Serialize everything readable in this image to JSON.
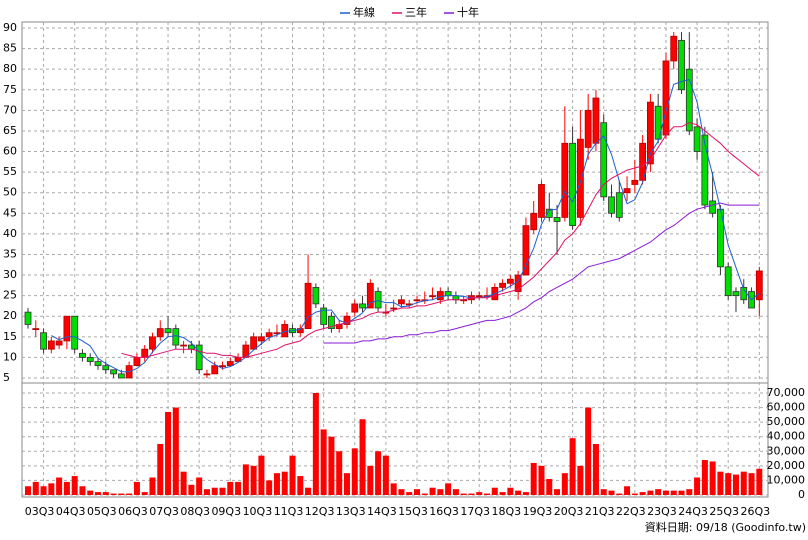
{
  "chart_data": [
    {
      "type": "candlestick",
      "up_color": "#ff0000",
      "down_color": "#00dd00",
      "grid": true,
      "categories": [
        null,
        null,
        "03Q3",
        null,
        null,
        null,
        "04Q3",
        null,
        null,
        null,
        "05Q3",
        null,
        null,
        null,
        "06Q3",
        null,
        null,
        null,
        "07Q3",
        null,
        null,
        null,
        "08Q3",
        null,
        null,
        null,
        "09Q3",
        null,
        null,
        null,
        "10Q3",
        null,
        null,
        null,
        "11Q3",
        null,
        null,
        null,
        "12Q3",
        null,
        null,
        null,
        "13Q3",
        null,
        null,
        null,
        "14Q3",
        null,
        null,
        null,
        "15Q3",
        null,
        null,
        null,
        "16Q3",
        null,
        null,
        null,
        "17Q3",
        null,
        null,
        null,
        "18Q3",
        null,
        null,
        null,
        "19Q3",
        null,
        null,
        null,
        "20Q3",
        null,
        null,
        null,
        "21Q3",
        null,
        null,
        null,
        "22Q3",
        null,
        null,
        null,
        "23Q3",
        null,
        null,
        null,
        "24Q3",
        null,
        null,
        null,
        "25Q3",
        null,
        null,
        null,
        "26Q3"
      ],
      "ohlc": [
        [
          21,
          22,
          17,
          18
        ],
        [
          17,
          19,
          15,
          17
        ],
        [
          16,
          17,
          11,
          12
        ],
        [
          12,
          15,
          11,
          14
        ],
        [
          13,
          15,
          12,
          14
        ],
        [
          14,
          20,
          12,
          20
        ],
        [
          20,
          20,
          11,
          12
        ],
        [
          11,
          12,
          9,
          10
        ],
        [
          10,
          11,
          8,
          9
        ],
        [
          9,
          10,
          7,
          8
        ],
        [
          8,
          9,
          6,
          7
        ],
        [
          7,
          7,
          5,
          6
        ],
        [
          6,
          7,
          5,
          5
        ],
        [
          5,
          9,
          5,
          8
        ],
        [
          8,
          11,
          8,
          10
        ],
        [
          10,
          13,
          9,
          12
        ],
        [
          12,
          16,
          11,
          15
        ],
        [
          15,
          19,
          14,
          17
        ],
        [
          17,
          20,
          15,
          16
        ],
        [
          17,
          18,
          12,
          13
        ],
        [
          13,
          14,
          11,
          13
        ],
        [
          13,
          14,
          11,
          12
        ],
        [
          13,
          14,
          6,
          7
        ],
        [
          6,
          7,
          5,
          6
        ],
        [
          6,
          9,
          6,
          8
        ],
        [
          8,
          9,
          7,
          8
        ],
        [
          8,
          10,
          8,
          9
        ],
        [
          9,
          11,
          9,
          10
        ],
        [
          10,
          14,
          10,
          13
        ],
        [
          12,
          16,
          12,
          15
        ],
        [
          14,
          16,
          13,
          15
        ],
        [
          15,
          17,
          14,
          16
        ],
        [
          16,
          18,
          15,
          16
        ],
        [
          15,
          19,
          15,
          18
        ],
        [
          17,
          18,
          15,
          16
        ],
        [
          16,
          18,
          15,
          17
        ],
        [
          17,
          35,
          17,
          28
        ],
        [
          27,
          28,
          22,
          23
        ],
        [
          22,
          23,
          17,
          18
        ],
        [
          20,
          21,
          16,
          17
        ],
        [
          17,
          19,
          16,
          18
        ],
        [
          18,
          21,
          17,
          20
        ],
        [
          21,
          24,
          20,
          23
        ],
        [
          23,
          25,
          21,
          22
        ],
        [
          22,
          29,
          22,
          28
        ],
        [
          26,
          27,
          21,
          22
        ],
        [
          21,
          23,
          20,
          21
        ],
        [
          22,
          24,
          21,
          22
        ],
        [
          23,
          25,
          22,
          24
        ],
        [
          23,
          24,
          22,
          23
        ],
        [
          24,
          25,
          23,
          24
        ],
        [
          24,
          26,
          23,
          24
        ],
        [
          25,
          27,
          24,
          25
        ],
        [
          24,
          27,
          23,
          26
        ],
        [
          26,
          27,
          24,
          25
        ],
        [
          25,
          26,
          23,
          24
        ],
        [
          24,
          25,
          23,
          24
        ],
        [
          24,
          26,
          23,
          25
        ],
        [
          25,
          26,
          24,
          25
        ],
        [
          25,
          27,
          24,
          25
        ],
        [
          24,
          28,
          24,
          27
        ],
        [
          27,
          29,
          26,
          28
        ],
        [
          28,
          30,
          27,
          29
        ],
        [
          26,
          31,
          24,
          30
        ],
        [
          30,
          44,
          30,
          42
        ],
        [
          41,
          48,
          40,
          45
        ],
        [
          44,
          53,
          43,
          52
        ],
        [
          46,
          50,
          43,
          44
        ],
        [
          44,
          47,
          35,
          43
        ],
        [
          44,
          71,
          43,
          62
        ],
        [
          62,
          66,
          41,
          42
        ],
        [
          44,
          70,
          42,
          63
        ],
        [
          61,
          74,
          58,
          70
        ],
        [
          62,
          75,
          60,
          73
        ],
        [
          67,
          69,
          48,
          49
        ],
        [
          49,
          52,
          44,
          45
        ],
        [
          50,
          53,
          43,
          44
        ],
        [
          50,
          54,
          48,
          51
        ],
        [
          52,
          58,
          50,
          53
        ],
        [
          53,
          64,
          52,
          62
        ],
        [
          57,
          74,
          55,
          72
        ],
        [
          71,
          74,
          62,
          63
        ],
        [
          64,
          84,
          63,
          82
        ],
        [
          82,
          89,
          80,
          88
        ],
        [
          87,
          89,
          74,
          75
        ],
        [
          80,
          89,
          64,
          65
        ],
        [
          66,
          68,
          58,
          60
        ],
        [
          64,
          66,
          46,
          47
        ],
        [
          48,
          55,
          44,
          45
        ],
        [
          46,
          47,
          30,
          32
        ],
        [
          32,
          33,
          24,
          25
        ],
        [
          26,
          27,
          21,
          25
        ],
        [
          27,
          29,
          23,
          24
        ],
        [
          26,
          27,
          22,
          22
        ],
        [
          24,
          32,
          20,
          31
        ]
      ],
      "series": [
        {
          "name": "年線",
          "color": "#1a5fd0",
          "values": [
            null,
            null,
            null,
            15.3,
            14.3,
            15,
            15,
            14,
            12.8,
            9.8,
            8.5,
            7.5,
            6.5,
            6.5,
            7.3,
            8.8,
            11.3,
            13.5,
            15,
            15.3,
            14.8,
            13.5,
            11.3,
            9.5,
            8.3,
            7.3,
            7.8,
            8.8,
            10,
            11.8,
            13.3,
            14.8,
            15.5,
            16.3,
            16.5,
            16.8,
            19.8,
            21,
            21.5,
            21.5,
            19,
            18.3,
            19.5,
            20.8,
            23.3,
            23.8,
            23.3,
            23.3,
            22.3,
            22.5,
            23.3,
            23.8,
            24,
            24.8,
            25,
            25,
            24.8,
            24.5,
            24.5,
            24.8,
            25.5,
            26.3,
            27.3,
            28.5,
            32.3,
            36.5,
            42.3,
            45.8,
            46,
            50.3,
            47.8,
            52.5,
            59.3,
            62,
            63.8,
            59.3,
            52.8,
            47.3,
            48.3,
            52.5,
            59.5,
            62.5,
            69.8,
            76.3,
            77,
            77.5,
            72,
            61.8,
            54.3,
            46,
            37.3,
            31.8,
            26.5,
            24,
            25.5
          ]
        },
        {
          "name": "三年",
          "color": "#e0106a",
          "values": [
            null,
            null,
            null,
            null,
            null,
            null,
            null,
            null,
            null,
            null,
            null,
            null,
            11,
            10.5,
            10,
            10,
            10.5,
            11,
            11.5,
            12,
            12,
            12,
            11.5,
            11,
            11,
            10.5,
            10.5,
            10,
            10,
            10.5,
            11,
            11.5,
            12,
            13,
            13.5,
            14,
            15.5,
            16.5,
            17,
            17.5,
            18,
            18.5,
            19,
            19.5,
            20.5,
            21,
            21,
            21.5,
            22,
            22,
            22.5,
            22.5,
            23,
            23.5,
            24,
            24,
            24,
            24.5,
            24.5,
            24.5,
            25,
            25.5,
            26,
            26.5,
            28,
            29.5,
            31.5,
            33.5,
            35.5,
            38.5,
            40,
            42.5,
            46,
            49.5,
            52,
            53.5,
            54.5,
            55.5,
            56,
            56.5,
            58,
            61,
            64,
            66,
            66,
            67,
            66.5,
            65,
            63.5,
            62,
            60,
            58.5,
            57,
            55.5,
            54
          ]
        },
        {
          "name": "十年",
          "color": "#8a1ad6",
          "values": [
            null,
            null,
            null,
            null,
            null,
            null,
            null,
            null,
            null,
            null,
            null,
            null,
            null,
            null,
            null,
            null,
            null,
            null,
            null,
            null,
            null,
            null,
            null,
            null,
            null,
            null,
            null,
            null,
            null,
            null,
            null,
            null,
            null,
            null,
            null,
            null,
            null,
            null,
            13.5,
            13.5,
            13.5,
            13.5,
            13.5,
            14,
            14,
            14.5,
            14.5,
            15,
            15,
            15.5,
            15.5,
            16,
            16,
            16.5,
            16.5,
            17,
            17.5,
            18,
            18.5,
            19,
            19,
            19.5,
            20,
            21,
            22,
            23.5,
            24.5,
            26,
            27,
            28,
            29,
            30.5,
            32,
            32.5,
            33,
            33.5,
            34,
            35,
            36,
            37,
            38,
            39.5,
            41,
            42,
            43.5,
            45,
            46,
            46.5,
            47,
            47.5,
            47,
            47,
            47,
            47,
            47
          ]
        }
      ],
      "ylim": [
        5,
        90
      ],
      "yticks": [
        5,
        10,
        15,
        20,
        25,
        30,
        35,
        40,
        45,
        50,
        55,
        60,
        65,
        70,
        75,
        80,
        85,
        90
      ]
    },
    {
      "type": "bar",
      "color": "#ff0000",
      "values": [
        6000,
        9000,
        6000,
        8000,
        12000,
        9000,
        13000,
        6000,
        3000,
        2000,
        2000,
        1000,
        1000,
        1000,
        9000,
        2000,
        12000,
        35000,
        57000,
        60000,
        16000,
        7000,
        12000,
        4000,
        5000,
        5000,
        9000,
        9000,
        21000,
        20000,
        27000,
        10000,
        15000,
        16000,
        27000,
        13000,
        5000,
        70000,
        45000,
        40000,
        30000,
        15000,
        32000,
        52000,
        20000,
        30000,
        27000,
        8000,
        4000,
        2000,
        4000,
        1000,
        5000,
        4000,
        8000,
        4000,
        1000,
        1000,
        2000,
        1000,
        5000,
        2000,
        5000,
        3000,
        2000,
        22000,
        20000,
        11000,
        4000,
        15000,
        39000,
        20000,
        60000,
        35000,
        4000,
        3000,
        1000,
        6000,
        1000,
        2000,
        3000,
        4000,
        3000,
        3000,
        3000,
        4000,
        12000,
        24000,
        23000,
        16000,
        15000,
        14000,
        16000,
        15000,
        18000
      ],
      "ylim": [
        0,
        70000
      ],
      "yticks": [
        0,
        {
          "value": 10000,
          "label": "10,000"
        },
        {
          "value": 20000,
          "label": "20,000"
        },
        {
          "value": 30000,
          "label": "30,000"
        },
        {
          "value": 40000,
          "label": "40,000"
        },
        {
          "value": 50000,
          "label": "50,000"
        },
        {
          "value": 60000,
          "label": "60,000"
        },
        {
          "value": 70000,
          "label": "70,000"
        }
      ]
    }
  ],
  "source": "資料日期: 09/18 (Goodinfo.tw)"
}
